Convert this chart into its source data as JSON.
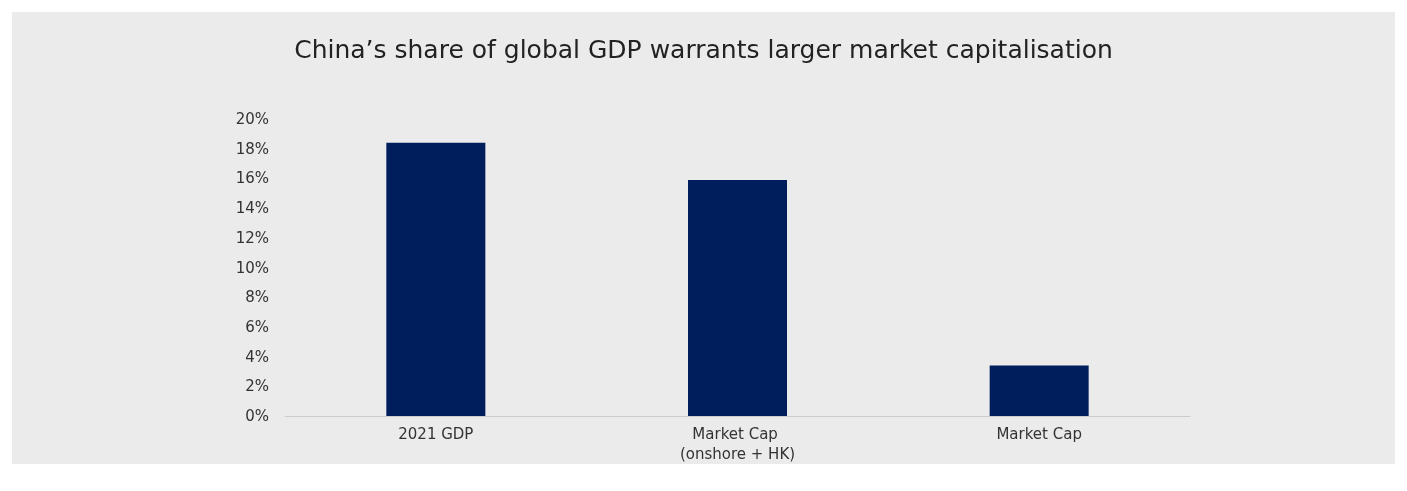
{
  "chart_data": {
    "type": "bar",
    "title": "China’s share of global GDP warrants larger market capitalisation",
    "categories": [
      "2021 GDP",
      "Market Cap (onshore + HK)",
      "Market Cap"
    ],
    "values": [
      18.4,
      15.9,
      3.4
    ],
    "color": "#001d5c",
    "ylim": [
      0,
      20
    ],
    "yticks": [
      {
        "value": 0,
        "label": "0%"
      },
      {
        "value": 2,
        "label": "2%"
      },
      {
        "value": 4,
        "label": "4%"
      },
      {
        "value": 6,
        "label": "6%"
      },
      {
        "value": 8,
        "label": "8%"
      },
      {
        "value": 10,
        "label": "10%"
      },
      {
        "value": 12,
        "label": "12%"
      },
      {
        "value": 14,
        "label": "14%"
      },
      {
        "value": 16,
        "label": "16%"
      },
      {
        "value": 18,
        "label": "18%"
      },
      {
        "value": 20,
        "label": "20%"
      }
    ],
    "grid": false
  }
}
